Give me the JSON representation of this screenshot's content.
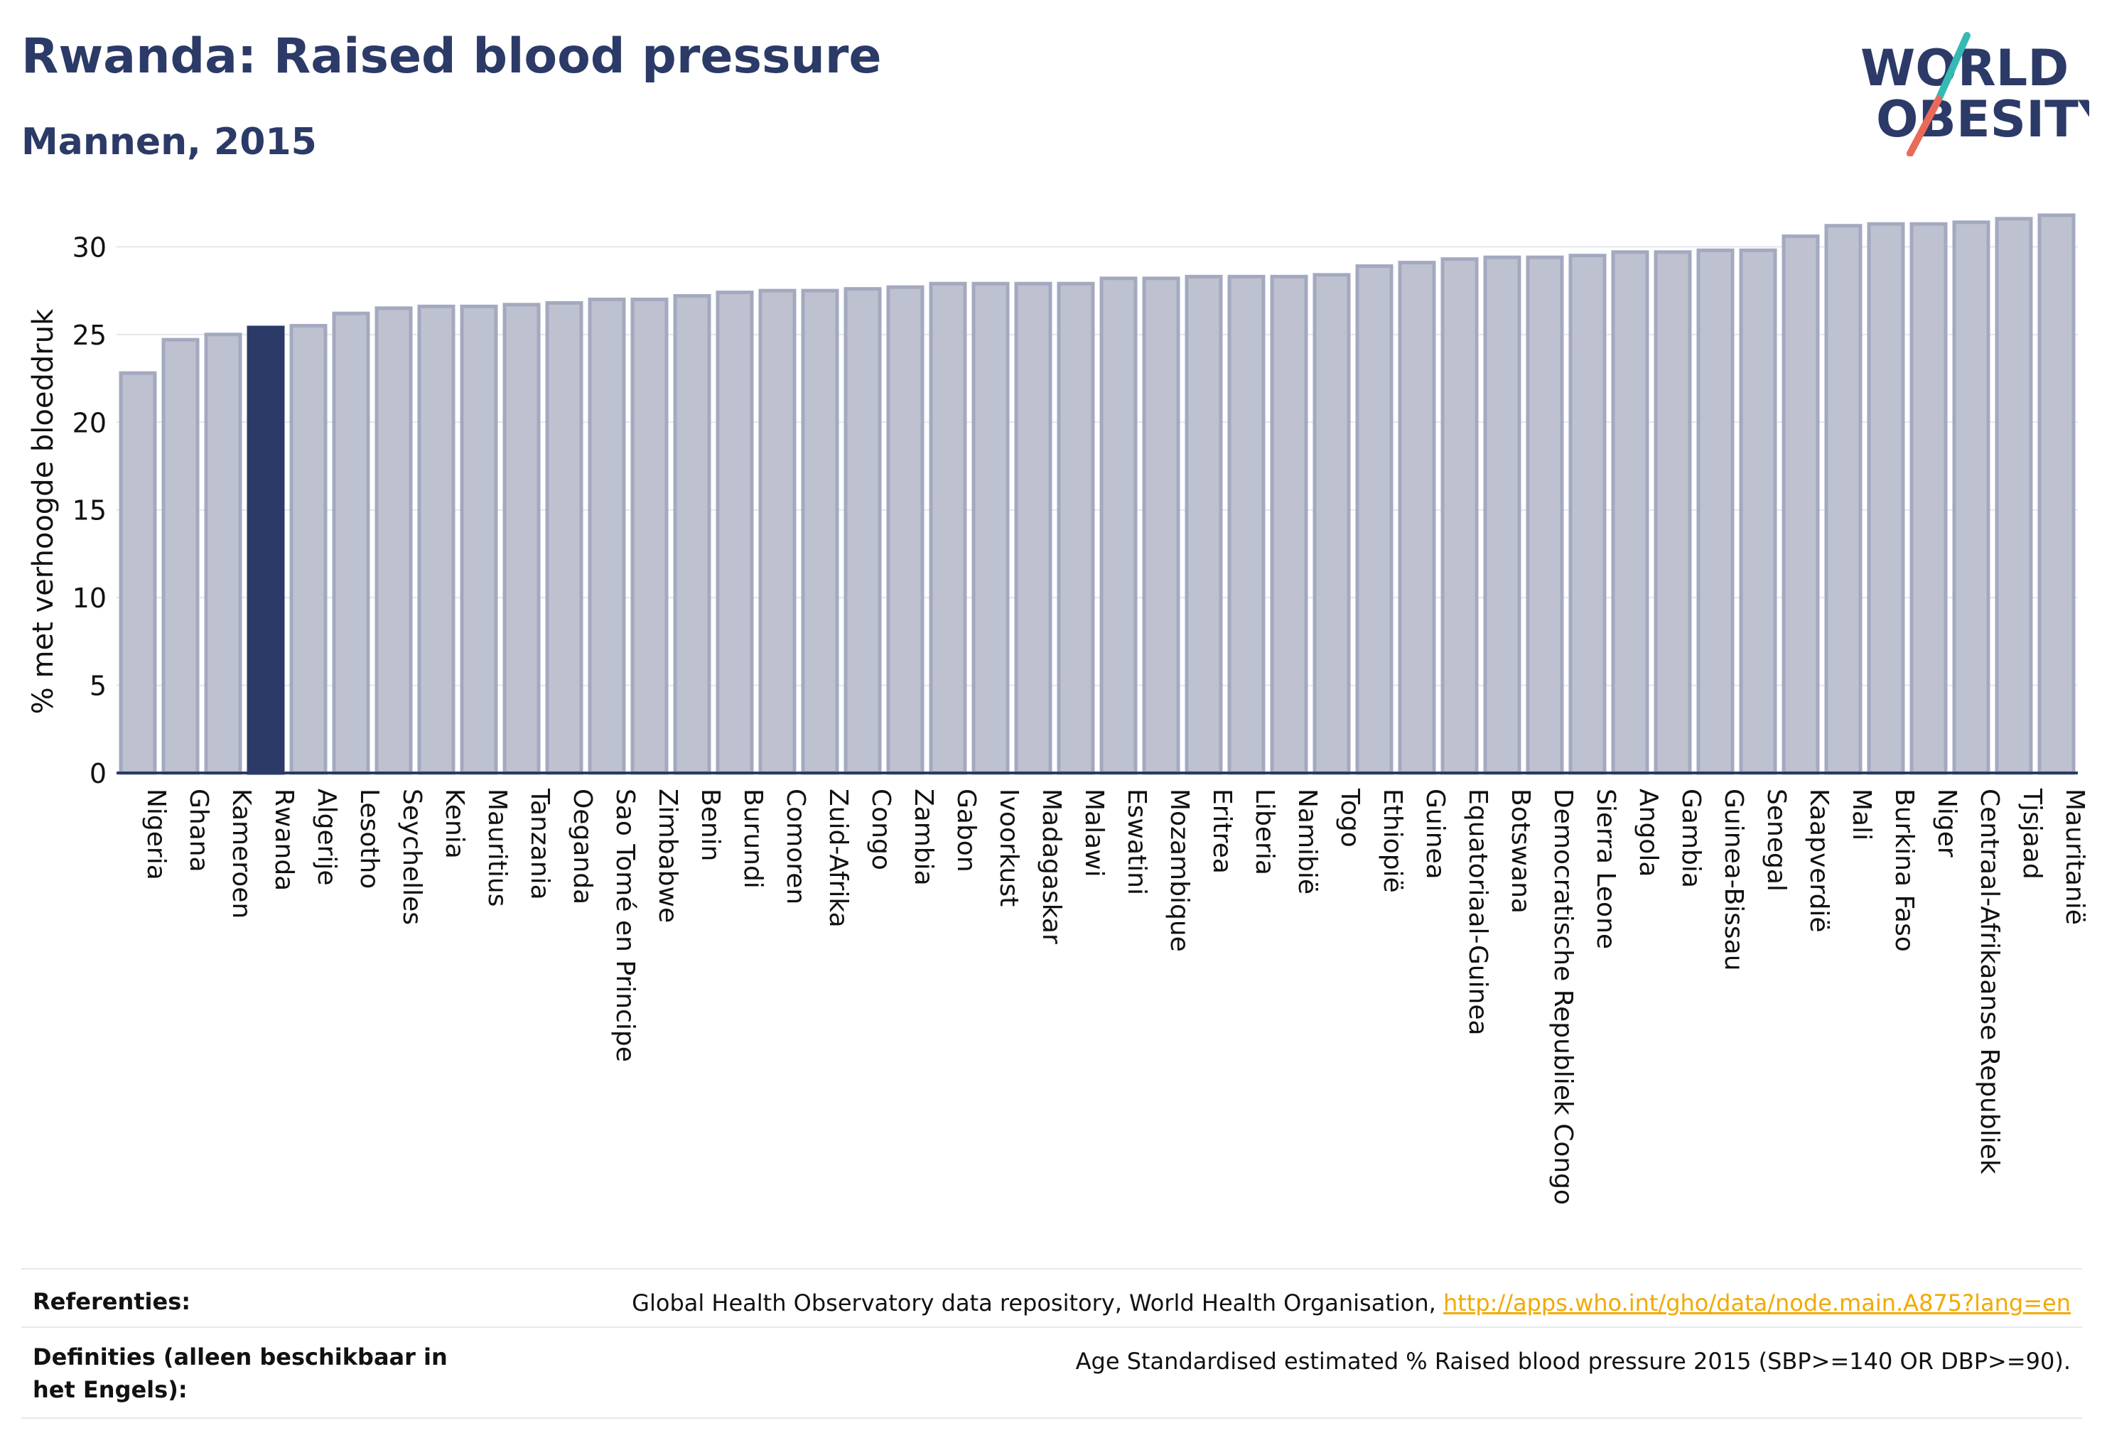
{
  "header": {
    "title": "Rwanda: Raised blood pressure",
    "subtitle": "Mannen, 2015"
  },
  "logo": {
    "line1": "WORLD",
    "line2": "OBESITY"
  },
  "colors": {
    "highlight": "#2b3a67",
    "bar_fill": "#bec1cf",
    "bar_stroke": "#a3a9bf",
    "axis": "#2b3a67",
    "grid": "#e4e6ec",
    "logo_navy": "#2b3a67",
    "logo_teal": "#35b9b5",
    "logo_coral": "#ea6a5a"
  },
  "chart_data": {
    "type": "bar",
    "ylabel": "% met verhoogde bloeddruk",
    "xlabel": "",
    "ylim": [
      0,
      32
    ],
    "yticks": [
      0,
      5,
      10,
      15,
      20,
      25,
      30
    ],
    "grid": true,
    "highlight_category": "Rwanda",
    "categories": [
      "Nigeria",
      "Ghana",
      "Kameroen",
      "Rwanda",
      "Algerije",
      "Lesotho",
      "Seychelles",
      "Kenia",
      "Mauritius",
      "Tanzania",
      "Oeganda",
      "Sao Tomé en Principe",
      "Zimbabwe",
      "Benin",
      "Burundi",
      "Comoren",
      "Zuid-Afrika",
      "Congo",
      "Zambia",
      "Gabon",
      "Ivoorkust",
      "Madagaskar",
      "Malawi",
      "Eswatini",
      "Mozambique",
      "Eritrea",
      "Liberia",
      "Namibië",
      "Togo",
      "Ethiopië",
      "Guinea",
      "Equatoriaal-Guinea",
      "Botswana",
      "Democratische Republiek Congo",
      "Sierra Leone",
      "Angola",
      "Gambia",
      "Guinea-Bissau",
      "Senegal",
      "Kaapverdië",
      "Mali",
      "Burkina Faso",
      "Niger",
      "Centraal-Afrikaanse Republiek",
      "Tjsjaad",
      "Mauritanië"
    ],
    "values": [
      22.8,
      24.7,
      25.0,
      25.4,
      25.5,
      26.2,
      26.5,
      26.6,
      26.6,
      26.7,
      26.8,
      27.0,
      27.0,
      27.2,
      27.4,
      27.5,
      27.5,
      27.6,
      27.7,
      27.9,
      27.9,
      27.9,
      27.9,
      28.2,
      28.2,
      28.3,
      28.3,
      28.3,
      28.4,
      28.9,
      29.1,
      29.3,
      29.4,
      29.4,
      29.5,
      29.7,
      29.7,
      29.8,
      29.8,
      30.6,
      31.2,
      31.3,
      31.3,
      31.4,
      31.6,
      31.8
    ]
  },
  "footer": {
    "references_label": "Referenties:",
    "references_text": "Global Health Observatory data repository, World Health Organisation, ",
    "references_link": "http://apps.who.int/gho/data/node.main.A875?lang=en",
    "definitions_label": "Definities (alleen beschikbaar in het Engels):",
    "definitions_text": "Age Standardised estimated % Raised blood pressure 2015 (SBP>=140 OR DBP>=90)."
  }
}
